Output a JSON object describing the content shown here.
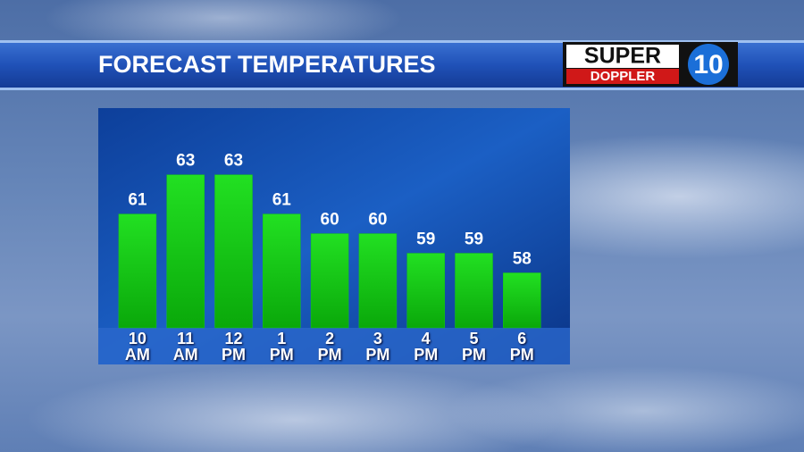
{
  "chart_data": {
    "type": "bar",
    "title": "FORECAST TEMPERATURES",
    "categories": [
      "10 AM",
      "11 AM",
      "12 PM",
      "1 PM",
      "2 PM",
      "3 PM",
      "4 PM",
      "5 PM",
      "6 PM"
    ],
    "values": [
      61,
      63,
      63,
      61,
      60,
      60,
      59,
      59,
      58
    ],
    "color": "#14c814",
    "ylim": [
      55.2,
      66.4
    ]
  },
  "logo": {
    "line1": "SUPER",
    "line2": "DOPPLER",
    "number": "10"
  }
}
